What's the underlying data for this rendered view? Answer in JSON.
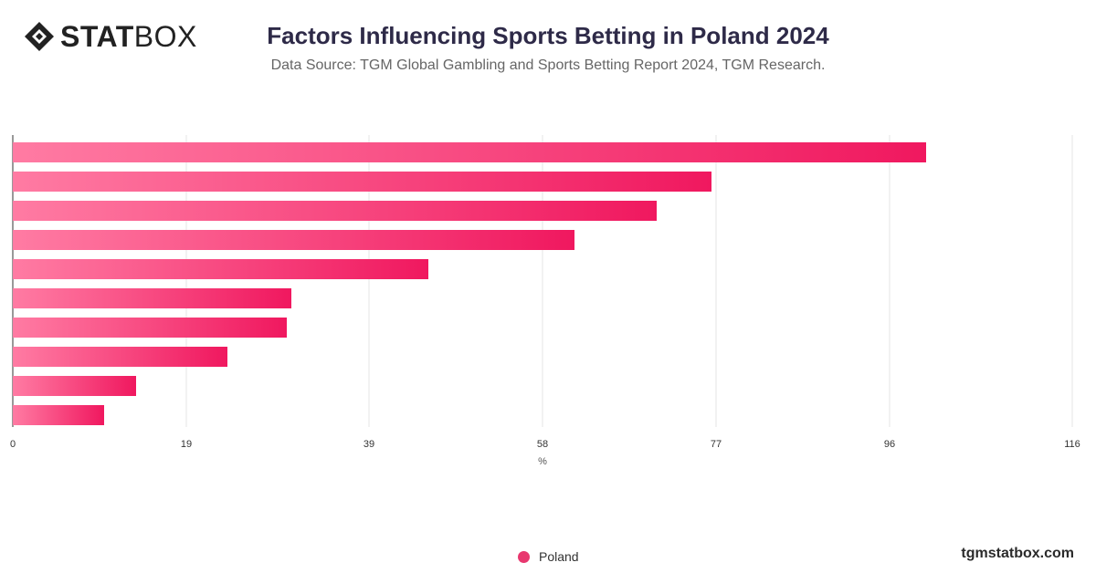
{
  "header": {
    "logo_stat": "STAT",
    "logo_box": "BOX",
    "title": "Factors Influencing Sports Betting in Poland 2024",
    "subtitle": "Data Source: TGM Global Gambling and Sports Betting Report 2024, TGM Research."
  },
  "chart_data": {
    "type": "bar",
    "orientation": "horizontal",
    "xlabel": "%",
    "xlim": [
      0,
      116
    ],
    "x_ticks": [
      0,
      19,
      39,
      58,
      77,
      96,
      116
    ],
    "grid": true,
    "series": [
      {
        "name": "Poland",
        "values": [
          100,
          76.5,
          70.5,
          61.5,
          45.5,
          30.5,
          30,
          23.5,
          13.5,
          10
        ]
      }
    ],
    "colors": {
      "bar_start": "#ff7ba3",
      "bar_end": "#f0185f",
      "legend": "#e8386f",
      "grid": "#e6e6e6"
    },
    "legend_position": "bottom-center"
  },
  "legend": {
    "items": [
      {
        "label": "Poland"
      }
    ]
  },
  "footer": {
    "brand": "tgmstatbox.com"
  }
}
